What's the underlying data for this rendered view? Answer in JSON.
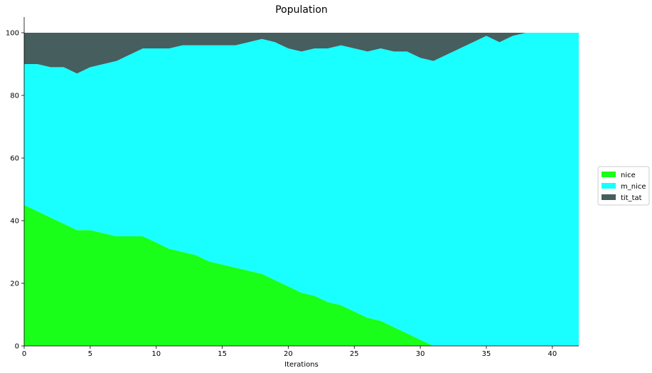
{
  "chart_data": {
    "type": "area",
    "stacked": true,
    "title": "Population",
    "xlabel": "Iterations",
    "ylabel": "",
    "xlim": [
      0,
      42
    ],
    "ylim": [
      0,
      105
    ],
    "xticks": [
      0,
      5,
      10,
      15,
      20,
      25,
      30,
      35,
      40
    ],
    "yticks": [
      0,
      20,
      40,
      60,
      80,
      100
    ],
    "grid": false,
    "legend_position": "center-right",
    "x": [
      0,
      1,
      2,
      3,
      4,
      5,
      6,
      7,
      8,
      9,
      10,
      11,
      12,
      13,
      14,
      15,
      16,
      17,
      18,
      19,
      20,
      21,
      22,
      23,
      24,
      25,
      26,
      27,
      28,
      29,
      30,
      31,
      32,
      33,
      34,
      35,
      36,
      37,
      38,
      39,
      40,
      41,
      42
    ],
    "series": [
      {
        "name": "nice",
        "color": "#19ff19",
        "values": [
          45,
          43,
          41,
          39,
          37,
          37,
          36,
          35,
          35,
          35,
          33,
          31,
          30,
          29,
          27,
          26,
          25,
          24,
          23,
          21,
          19,
          17,
          16,
          14,
          13,
          11,
          9,
          8,
          6,
          4,
          2,
          0,
          0,
          0,
          0,
          0,
          0,
          0,
          0,
          0,
          0,
          0,
          0
        ]
      },
      {
        "name": "m_nice",
        "color": "#19ffff",
        "values": [
          45,
          47,
          48,
          50,
          50,
          52,
          54,
          56,
          58,
          60,
          62,
          64,
          66,
          67,
          69,
          70,
          71,
          73,
          75,
          76,
          76,
          77,
          79,
          81,
          83,
          84,
          85,
          87,
          88,
          90,
          90,
          91,
          93,
          95,
          97,
          99,
          97,
          99,
          100,
          100,
          100,
          100,
          100
        ]
      },
      {
        "name": "tit_tat",
        "color": "#465e5e",
        "values": [
          10,
          10,
          11,
          11,
          13,
          11,
          10,
          9,
          7,
          5,
          5,
          5,
          4,
          4,
          4,
          4,
          4,
          3,
          2,
          3,
          5,
          6,
          5,
          5,
          4,
          5,
          6,
          5,
          6,
          6,
          8,
          9,
          7,
          5,
          3,
          1,
          3,
          1,
          0,
          0,
          0,
          0,
          0
        ]
      }
    ]
  }
}
